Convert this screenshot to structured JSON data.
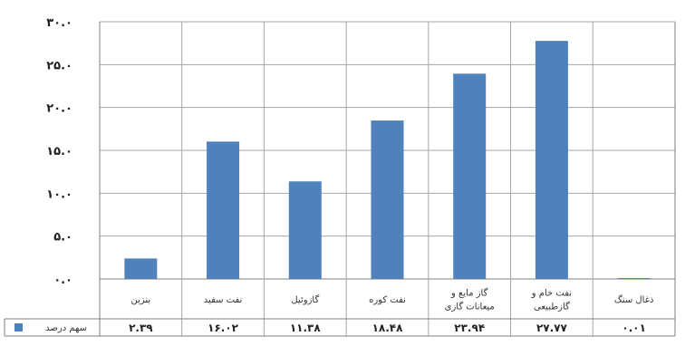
{
  "chart_data": {
    "type": "bar",
    "categories": [
      [
        "بنزین"
      ],
      [
        "نفت سفید"
      ],
      [
        "گازوئیل"
      ],
      [
        "نفت کوره"
      ],
      [
        "گاز مایع و",
        "میعانات گازی"
      ],
      [
        "نفت خام و",
        "گازطبیعی"
      ],
      [
        "ذغال سنگ"
      ]
    ],
    "series": [
      {
        "name": "سهم درصد",
        "values": [
          2.39,
          16.02,
          11.38,
          18.48,
          23.94,
          27.77,
          0.01
        ],
        "labels": [
          "۲.۳۹",
          "۱۶.۰۲",
          "۱۱.۳۸",
          "۱۸.۴۸",
          "۲۳.۹۴",
          "۲۷.۷۷",
          "۰.۰۱"
        ]
      }
    ],
    "ylim": [
      0,
      30
    ],
    "yticks": [
      0,
      5,
      10,
      15,
      20,
      25,
      30
    ],
    "ytick_labels": [
      "۰.۰",
      "۵.۰",
      "۱۰.۰",
      "۱۵.۰",
      "۲۰.۰",
      "۲۵.۰",
      "۳۰.۰"
    ],
    "grid": true,
    "legend": "table-left",
    "title": "",
    "xlabel": "",
    "ylabel": "",
    "colors": {
      "bar": "#4f81bd",
      "grid": "#a6a6a6",
      "axis": "#7f7f7f"
    }
  }
}
